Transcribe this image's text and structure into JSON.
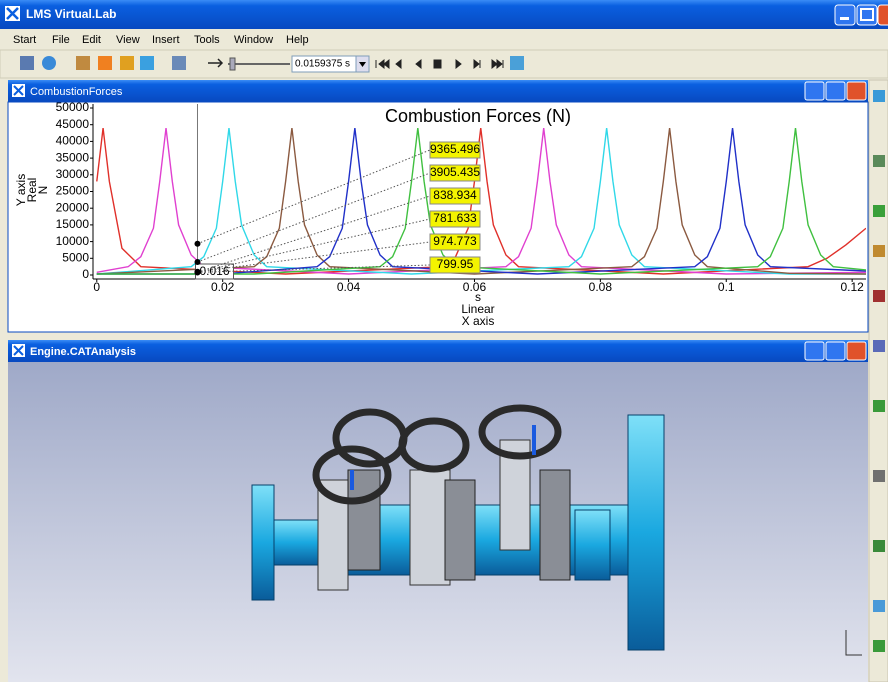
{
  "window": {
    "title": "LMS Virtual.Lab"
  },
  "menu": [
    "Start",
    "File",
    "Edit",
    "View",
    "Insert",
    "Tools",
    "Window",
    "Help"
  ],
  "toolbar": {
    "time": "0.0159375 s"
  },
  "panels": [
    {
      "title": "CombustionForces"
    },
    {
      "title": "Engine.CATAnalysis"
    }
  ],
  "chart_data": {
    "type": "line",
    "title": "Combustion Forces (N)",
    "ylabel": [
      "Y axis",
      "Real",
      "N"
    ],
    "xlabel": [
      "s",
      "Linear",
      "X axis"
    ],
    "xlim": [
      -0.0006,
      0.1222
    ],
    "ylim": [
      0,
      50000
    ],
    "xticks": [
      0,
      0.02,
      0.04,
      0.06,
      0.08,
      0.1,
      0.12
    ],
    "yticks": [
      0,
      5000,
      10000,
      15000,
      20000,
      25000,
      30000,
      35000,
      40000,
      45000,
      50000
    ],
    "series": [
      {
        "color": "#e0302a",
        "x": [
          0,
          0.001,
          0.002,
          0.004,
          0.007,
          0.03,
          0.055,
          0.057,
          0.059,
          0.06,
          0.061,
          0.062,
          0.063,
          0.065,
          0.067,
          0.09,
          0.113,
          0.116,
          0.119,
          0.1222
        ],
        "values": [
          28000,
          44000,
          28000,
          8000,
          2500,
          300,
          2500,
          5500,
          14000,
          28000,
          44000,
          28000,
          15000,
          6000,
          2500,
          300,
          2500,
          5000,
          9000,
          14000
        ]
      },
      {
        "color": "#e040d0",
        "x": [
          0,
          0.005,
          0.007,
          0.009,
          0.01,
          0.011,
          0.012,
          0.013,
          0.015,
          0.017,
          0.04,
          0.065,
          0.067,
          0.069,
          0.07,
          0.071,
          0.072,
          0.073,
          0.075,
          0.077,
          0.1,
          0.1222
        ],
        "values": [
          800,
          2500,
          5500,
          14000,
          28000,
          44000,
          28000,
          15000,
          6000,
          2500,
          300,
          2500,
          5500,
          14000,
          28000,
          44000,
          28000,
          15000,
          6000,
          2500,
          300,
          800
        ]
      },
      {
        "color": "#30d8e8",
        "x": [
          0,
          0.015,
          0.017,
          0.019,
          0.02,
          0.021,
          0.022,
          0.023,
          0.025,
          0.027,
          0.05,
          0.075,
          0.077,
          0.079,
          0.08,
          0.081,
          0.082,
          0.083,
          0.085,
          0.087,
          0.11,
          0.1222
        ],
        "values": [
          300,
          2500,
          5500,
          14000,
          28000,
          44000,
          28000,
          15000,
          6000,
          2500,
          300,
          2500,
          5500,
          14000,
          28000,
          44000,
          28000,
          15000,
          6000,
          2500,
          300,
          300
        ]
      },
      {
        "color": "#8b5a40",
        "x": [
          0,
          0.025,
          0.027,
          0.029,
          0.03,
          0.031,
          0.032,
          0.033,
          0.035,
          0.037,
          0.06,
          0.085,
          0.087,
          0.089,
          0.09,
          0.091,
          0.092,
          0.093,
          0.095,
          0.097,
          0.11,
          0.1222
        ],
        "values": [
          300,
          2500,
          5500,
          14000,
          28000,
          44000,
          28000,
          15000,
          6000,
          2500,
          300,
          2500,
          5500,
          14000,
          28000,
          44000,
          28000,
          15000,
          6000,
          2500,
          500,
          300
        ]
      },
      {
        "color": "#2030c8",
        "x": [
          0,
          0.02,
          0.035,
          0.037,
          0.039,
          0.04,
          0.041,
          0.042,
          0.043,
          0.045,
          0.047,
          0.07,
          0.095,
          0.097,
          0.099,
          0.1,
          0.101,
          0.102,
          0.103,
          0.105,
          0.107,
          0.1222
        ],
        "values": [
          300,
          300,
          2500,
          5500,
          14000,
          28000,
          44000,
          28000,
          15000,
          6000,
          2500,
          300,
          2500,
          5500,
          14000,
          28000,
          44000,
          28000,
          15000,
          6000,
          2500,
          1200
        ]
      },
      {
        "color": "#40c040",
        "x": [
          0,
          0.025,
          0.045,
          0.047,
          0.049,
          0.05,
          0.051,
          0.052,
          0.053,
          0.055,
          0.057,
          0.08,
          0.105,
          0.107,
          0.109,
          0.11,
          0.111,
          0.112,
          0.113,
          0.115,
          0.117,
          0.1222
        ],
        "values": [
          300,
          300,
          2500,
          5500,
          14000,
          28000,
          44000,
          28000,
          15000,
          6000,
          2500,
          300,
          2500,
          5500,
          14000,
          28000,
          44000,
          28000,
          15000,
          6000,
          2500,
          1500
        ]
      }
    ],
    "cursor": {
      "x": 0.016,
      "values": [
        9365.496,
        3905.435,
        838.934,
        781.633,
        974.773,
        799.95
      ]
    }
  }
}
